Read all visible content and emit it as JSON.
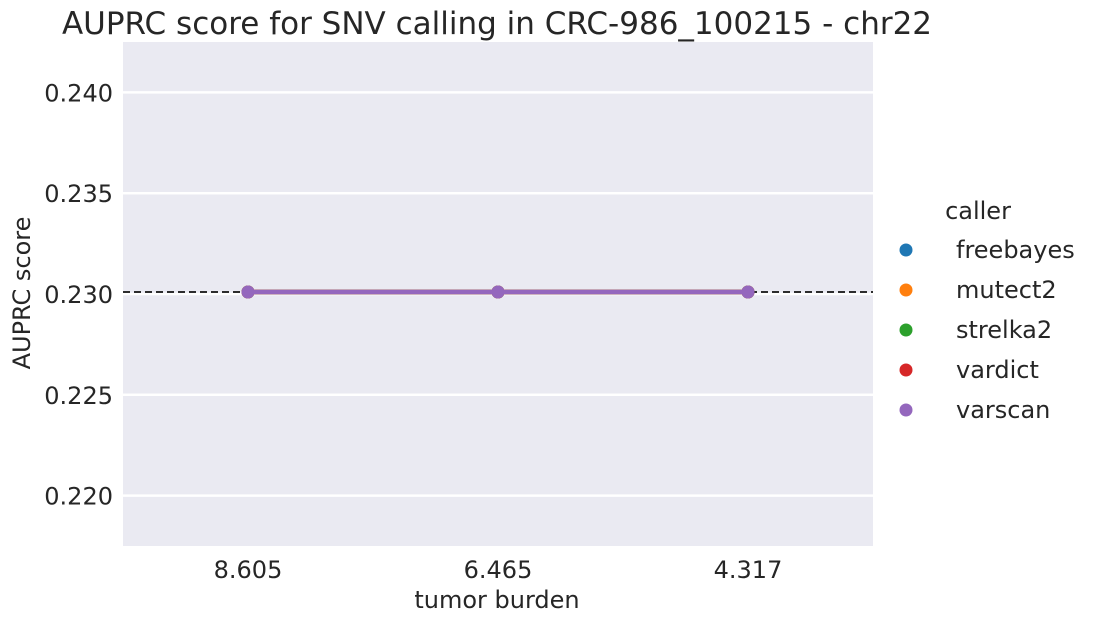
{
  "chart_data": {
    "type": "line",
    "title": "AUPRC score for SNV calling in CRC-986_100215 - chr22",
    "xlabel": "tumor burden",
    "ylabel": "AUPRC score",
    "categories": [
      "8.605",
      "6.465",
      "4.317"
    ],
    "ylim": [
      0.2175,
      0.2425
    ],
    "yticks": [
      "0.220",
      "0.225",
      "0.230",
      "0.235",
      "0.240"
    ],
    "ytick_values": [
      0.22,
      0.225,
      0.23,
      0.235,
      0.24
    ],
    "grid": true,
    "reference_line": 0.2301,
    "legend": {
      "title": "caller",
      "placement": "right"
    },
    "series": [
      {
        "name": "freebayes",
        "color": "#1f77b4",
        "values": [
          0.2301,
          0.2301,
          0.2301
        ]
      },
      {
        "name": "mutect2",
        "color": "#ff7f0e",
        "values": [
          0.2301,
          0.2301,
          0.2301
        ]
      },
      {
        "name": "strelka2",
        "color": "#2ca02c",
        "values": [
          0.2301,
          0.2301,
          0.2301
        ]
      },
      {
        "name": "vardict",
        "color": "#d62728",
        "values": [
          0.2301,
          0.2301,
          0.2301
        ]
      },
      {
        "name": "varscan",
        "color": "#9467bd",
        "values": [
          0.2301,
          0.2301,
          0.2301
        ]
      }
    ],
    "colors": {
      "plot_bg": "#eaeaf2",
      "grid": "#ffffff",
      "text": "#262626"
    }
  }
}
